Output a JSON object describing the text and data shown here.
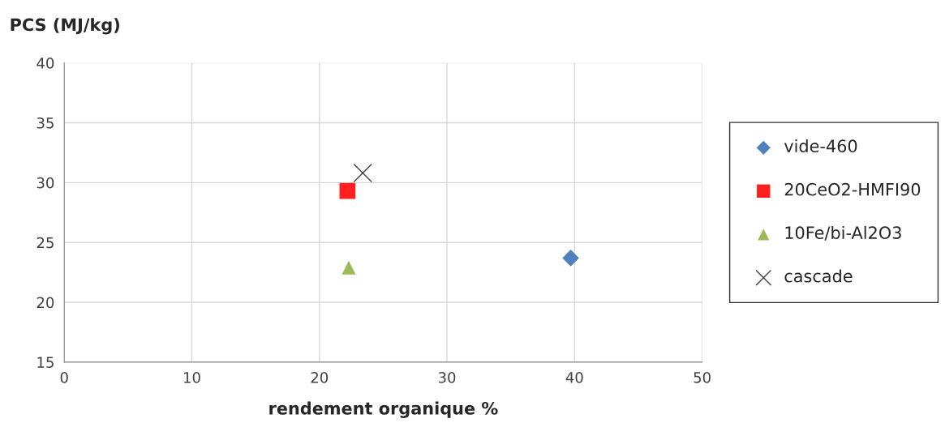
{
  "chart_data": {
    "type": "scatter",
    "ylabel": "PCS (MJ/kg)",
    "xlabel": "rendement organique %",
    "xlim": [
      0,
      50
    ],
    "xticks": [
      0,
      10,
      20,
      30,
      40,
      50
    ],
    "ylim": [
      15,
      40
    ],
    "yticks": [
      15,
      20,
      25,
      30,
      35,
      40
    ],
    "grid": true,
    "legend": "right",
    "series": [
      {
        "name": "vide-460",
        "color": "#4f81bd",
        "marker": "diamond",
        "x": [
          39.7
        ],
        "values": [
          23.7
        ]
      },
      {
        "name": "20CeO2-HMFI90",
        "color": "#ff2020",
        "marker": "square",
        "x": [
          22.2
        ],
        "values": [
          29.3
        ]
      },
      {
        "name": "10Fe/bi-Al2O3",
        "color": "#9bbb59",
        "marker": "triangle",
        "x": [
          22.3
        ],
        "values": [
          22.9
        ]
      },
      {
        "name": "cascade",
        "color": "#404040",
        "marker": "cross",
        "x": [
          23.4
        ],
        "values": [
          30.8
        ]
      }
    ]
  }
}
